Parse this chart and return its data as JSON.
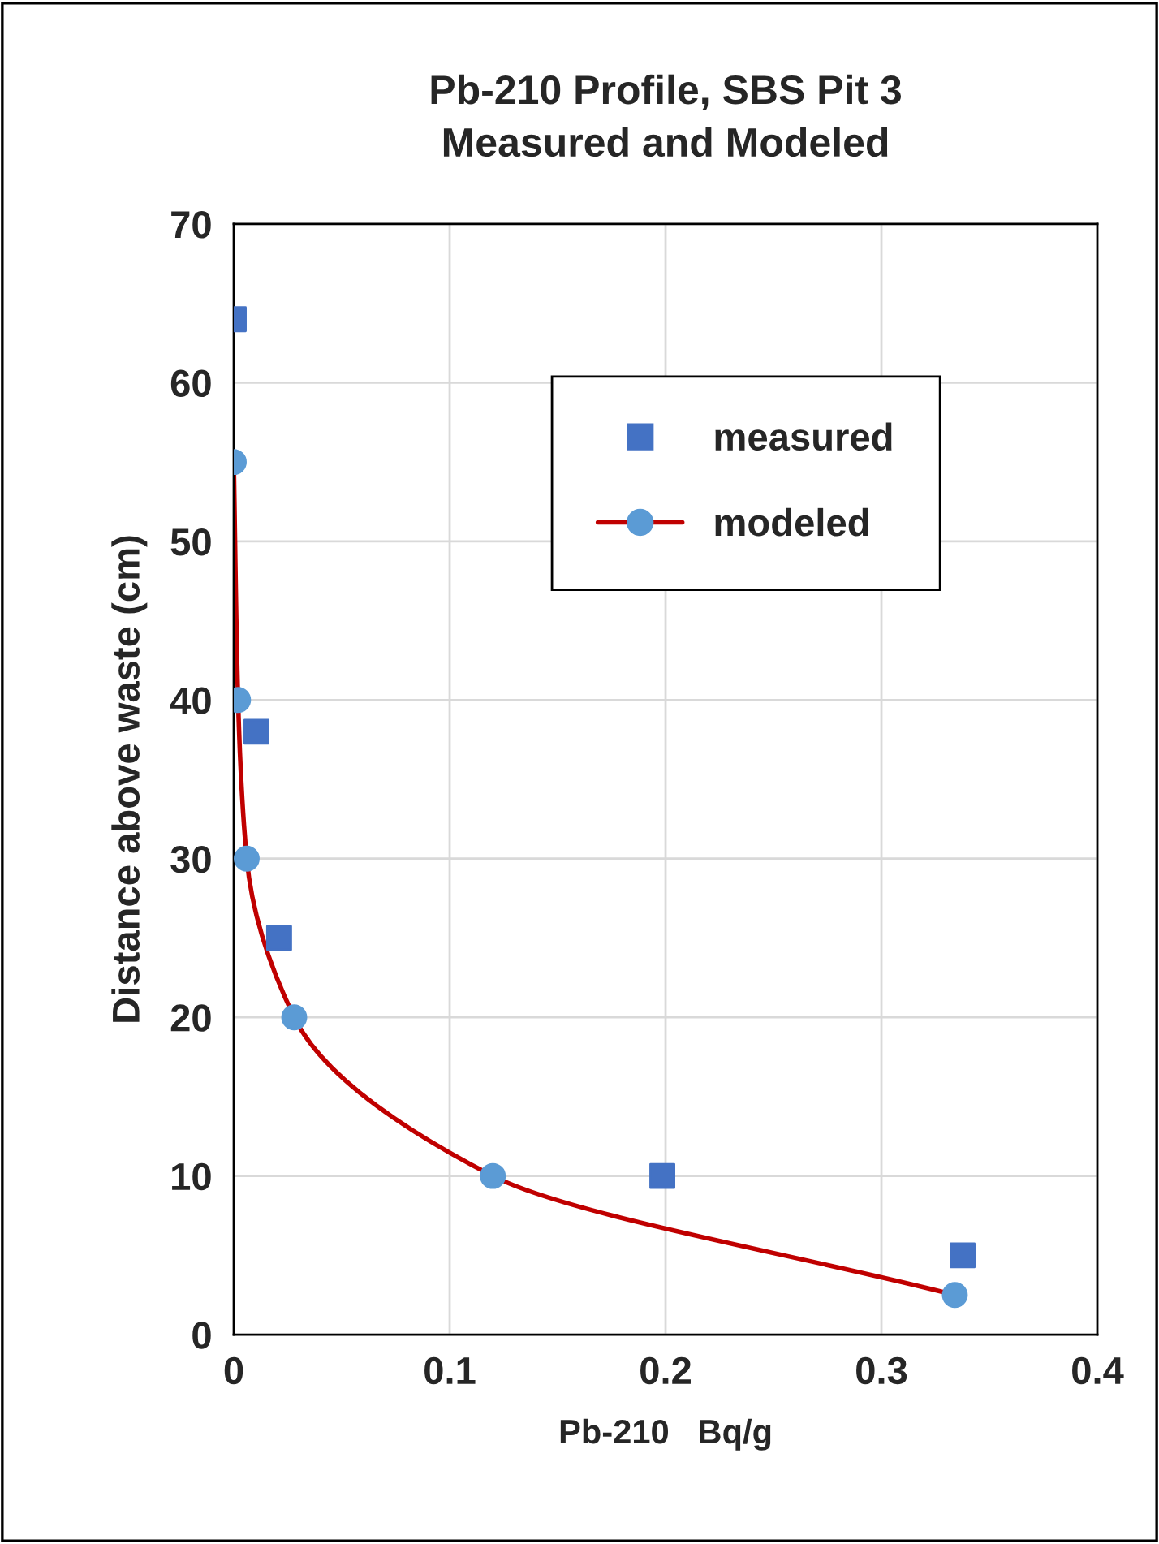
{
  "chart_data": {
    "type": "scatter",
    "title": "Pb-210 Profile, SBS Pit 3\nMeasured and Modeled",
    "xlabel": "Pb-210   Bq/g",
    "ylabel": "Distance above waste (cm)",
    "xlim": [
      0,
      0.4
    ],
    "xticks": [
      0,
      0.1,
      0.2,
      0.3,
      0.4
    ],
    "ylim": [
      0,
      70
    ],
    "yticks": [
      0,
      10,
      20,
      30,
      40,
      50,
      60,
      70
    ],
    "grid": true,
    "legend": "top right",
    "series": [
      {
        "name": "measured",
        "color": "#4472c4",
        "marker": "square",
        "x": [
          0.0,
          0.0105,
          0.021,
          0.1985,
          0.3376
        ],
        "values": [
          64,
          38,
          25,
          10,
          5
        ]
      },
      {
        "name": "modeled",
        "type": "line",
        "color": "#c00000",
        "colors": [
          "#5b9bd5",
          "#5b9bd5",
          "#5b9bd5",
          "#5b9bd5",
          "#5b9bd5",
          "#5b9bd5"
        ],
        "marker": "circle",
        "x": [
          0.0,
          0.002,
          0.006,
          0.028,
          0.12,
          0.334
        ],
        "values": [
          55,
          40,
          30,
          20,
          10,
          2.5
        ]
      }
    ]
  }
}
